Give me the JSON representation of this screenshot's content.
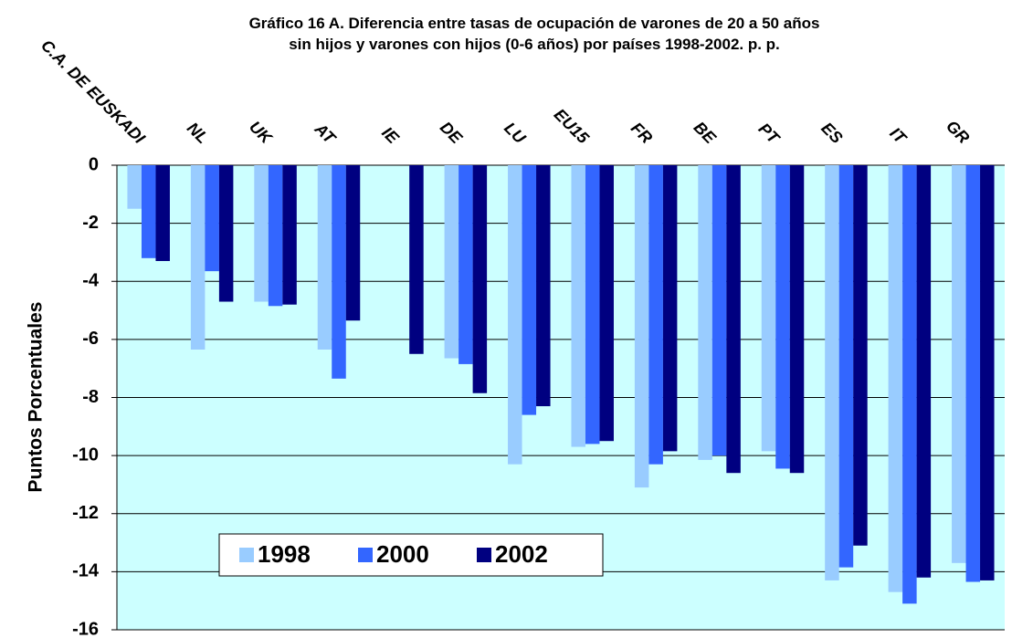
{
  "chart_data": {
    "type": "bar",
    "title": "Gráfico 16 A. Diferencia entre tasas de ocupación de varones de 20 a 50 años sin hijos y varones con hijos (0-6 años) por países 1998-2002. p. p.",
    "y_label": "Puntos Porcentuales",
    "categories": [
      "C.A. DE EUSKADI",
      "NL",
      "UK",
      "AT",
      "IE",
      "DE",
      "LU",
      "EU15",
      "FR",
      "BE",
      "PT",
      "ES",
      "IT",
      "GR"
    ],
    "series": [
      {
        "name": "1998",
        "color": "#99ccff",
        "values": [
          -1.5,
          -6.35,
          -4.7,
          -6.35,
          null,
          -6.65,
          -10.3,
          -9.7,
          -11.1,
          -10.15,
          -9.85,
          -14.3,
          -14.7,
          -13.7
        ]
      },
      {
        "name": "2000",
        "color": "#3366ff",
        "values": [
          -3.2,
          -3.65,
          -4.85,
          -7.35,
          null,
          -6.85,
          -8.6,
          -9.6,
          -10.3,
          -10.0,
          -10.45,
          -13.85,
          -15.1,
          -14.35
        ]
      },
      {
        "name": "2002",
        "color": "#000080",
        "values": [
          -3.3,
          -4.7,
          -4.8,
          -5.35,
          -6.5,
          -7.85,
          -8.3,
          -9.5,
          -9.85,
          -10.6,
          -10.6,
          -13.1,
          -14.2,
          -14.3
        ]
      }
    ],
    "ylim": [
      -16,
      0
    ],
    "yticks": [
      0,
      -2,
      -4,
      -6,
      -8,
      -10,
      -12,
      -14,
      -16
    ],
    "grid": true,
    "legend": "lower left"
  }
}
